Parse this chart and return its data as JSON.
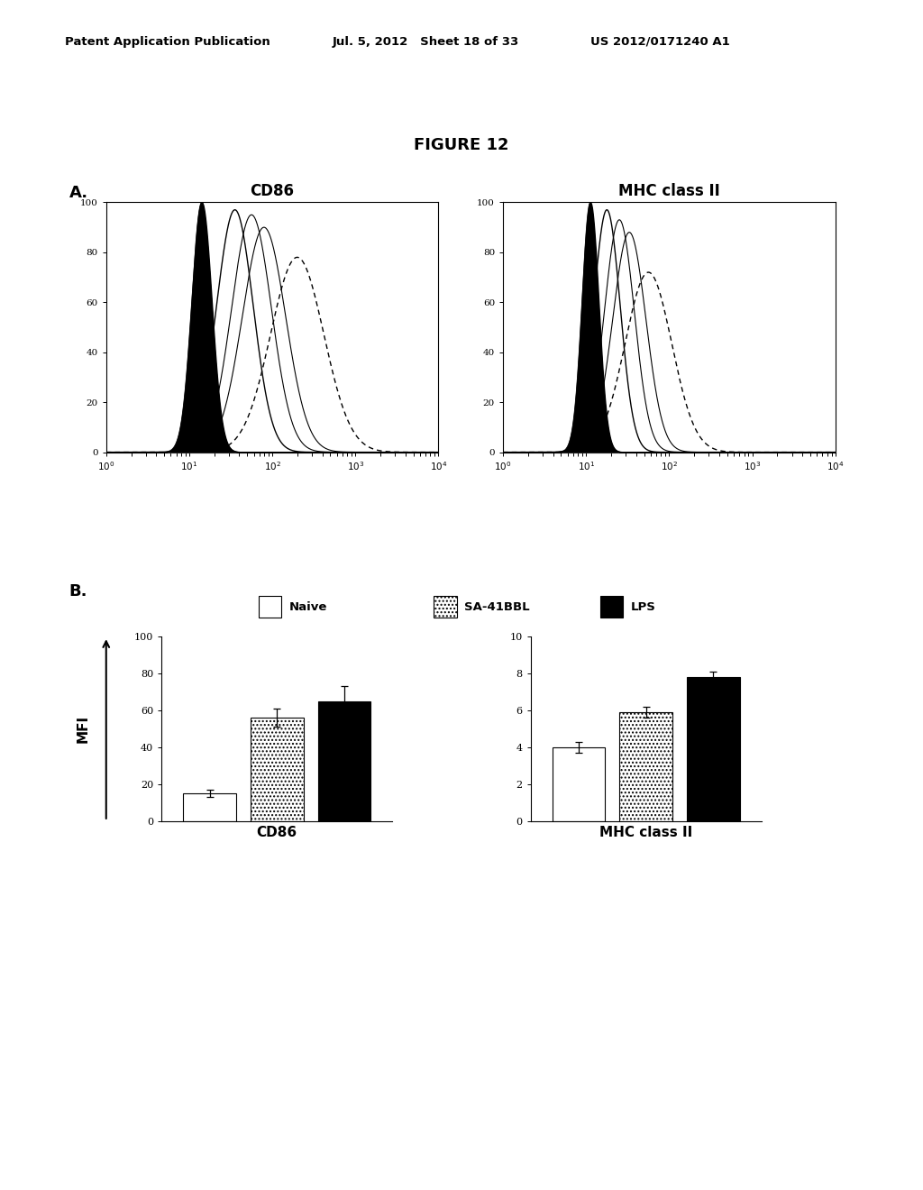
{
  "figure_title": "FIGURE 12",
  "panel_a_label": "A.",
  "panel_b_label": "B.",
  "header_left": "Patent Application Publication",
  "header_mid": "Jul. 5, 2012   Sheet 18 of 33",
  "header_right": "US 2012/0171240 A1",
  "flow_titles": [
    "CD86",
    "MHC class II"
  ],
  "flow_xlim": [
    1,
    10000
  ],
  "flow_ylim": [
    0,
    100
  ],
  "flow_yticks": [
    0,
    20,
    40,
    60,
    80,
    100
  ],
  "bar_legend": [
    "Naive",
    "SA-41BBL",
    "LPS"
  ],
  "bar_legend_colors": [
    "white",
    "white",
    "black"
  ],
  "bar_legend_hatches": [
    "",
    "....",
    ""
  ],
  "bar_legend_edge": [
    "black",
    "black",
    "black"
  ],
  "cd86_values": [
    15,
    56,
    65
  ],
  "cd86_errors": [
    2,
    5,
    8
  ],
  "cd86_ylim": [
    0,
    100
  ],
  "cd86_yticks": [
    0,
    20,
    40,
    60,
    80,
    100
  ],
  "mhc_values": [
    4.0,
    5.9,
    7.8
  ],
  "mhc_errors": [
    0.3,
    0.3,
    0.3
  ],
  "mhc_ylim": [
    0,
    10
  ],
  "mhc_yticks": [
    0,
    2,
    4,
    6,
    8,
    10
  ],
  "bar_xlabel_cd86": "CD86",
  "bar_xlabel_mhc": "MHC class II",
  "bar_ylabel": "MFI",
  "bar_colors": [
    "white",
    "white",
    "black"
  ],
  "bar_hatches": [
    "",
    "....",
    ""
  ],
  "bar_width": 0.22,
  "background_color": "#ffffff",
  "text_color": "#000000",
  "cd86_flow": {
    "black_mu": 1.15,
    "black_sig": 0.12,
    "black_amp": 100,
    "white_mu": 1.55,
    "white_sig": 0.22,
    "white_amp": 97,
    "solid1_mu": 1.75,
    "solid1_sig": 0.24,
    "solid1_amp": 95,
    "solid2_mu": 1.9,
    "solid2_sig": 0.26,
    "solid2_amp": 90,
    "dashed_mu": 2.3,
    "dashed_sig": 0.32,
    "dashed_amp": 78
  },
  "mhc_flow": {
    "black_mu": 1.05,
    "black_sig": 0.1,
    "black_amp": 100,
    "white_mu": 1.25,
    "white_sig": 0.16,
    "white_amp": 97,
    "solid1_mu": 1.4,
    "solid1_sig": 0.18,
    "solid1_amp": 93,
    "solid2_mu": 1.52,
    "solid2_sig": 0.2,
    "solid2_amp": 88,
    "dashed_mu": 1.75,
    "dashed_sig": 0.28,
    "dashed_amp": 72
  }
}
